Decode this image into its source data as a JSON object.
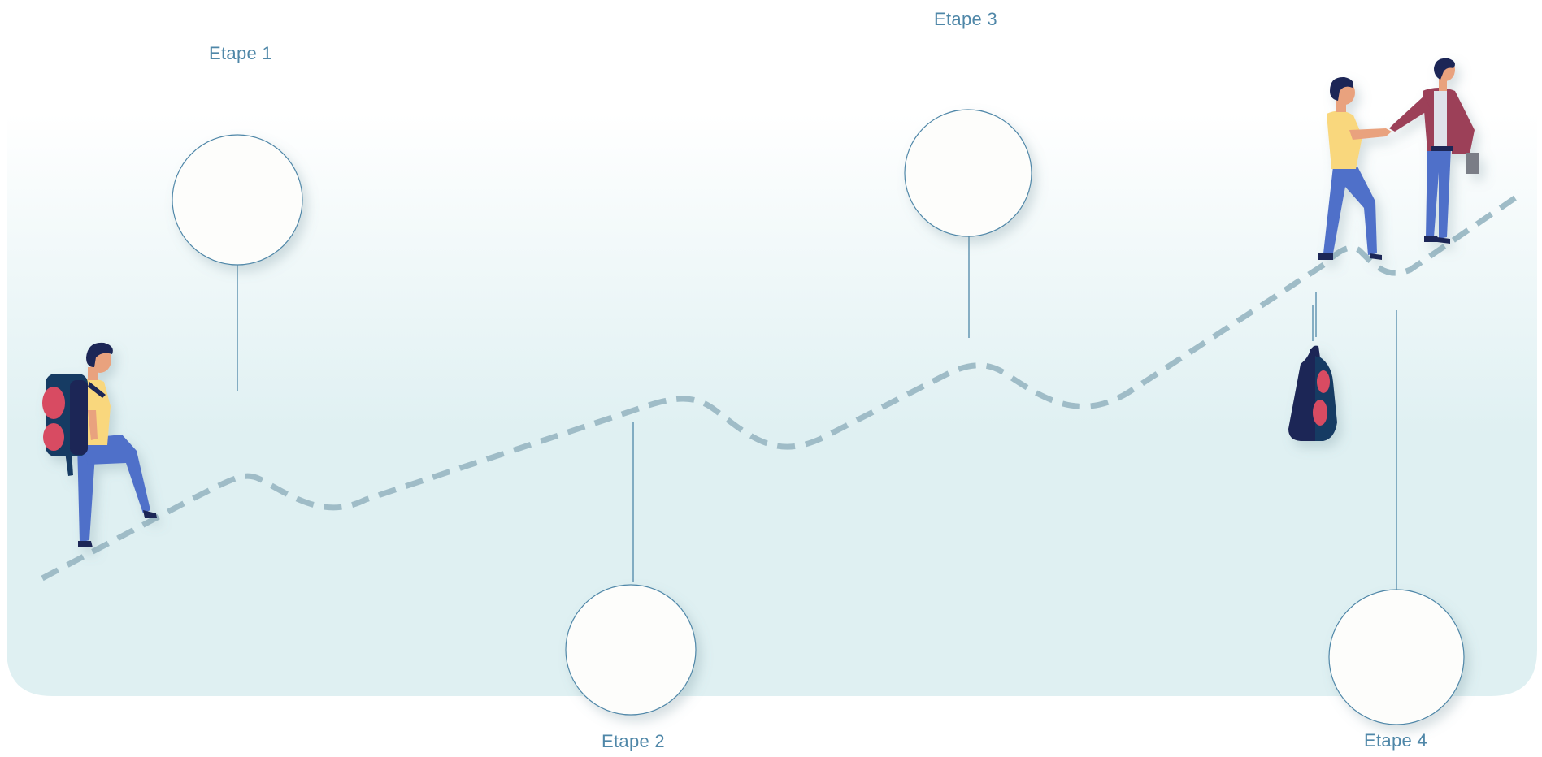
{
  "colors": {
    "panel_top": "#ffffff",
    "panel_bottom": "#dff0f2",
    "path": "#9fbcc7",
    "connector": "#4f87a8",
    "circle_stroke": "#4f87a8",
    "circle_fill": "#fdfdfb",
    "label": "#4f87a8",
    "shirt": "#f9d77d",
    "pants": "#4f6fc9",
    "hair": "#1f2557",
    "skin": "#e9a27e",
    "backpack": "#183b63",
    "backpack_pocket": "#d84b62",
    "jacket": "#9c3f59"
  },
  "steps": [
    {
      "id": "etape-1",
      "label": "Etape 1"
    },
    {
      "id": "etape-2",
      "label": "Etape 2"
    },
    {
      "id": "etape-3",
      "label": "Etape 3"
    },
    {
      "id": "etape-4",
      "label": "Etape 4"
    }
  ],
  "illustrations": {
    "hiker": "hiker-with-backpack-icon",
    "backpack": "dropped-backpack-icon",
    "handshake": "business-handshake-icon"
  }
}
